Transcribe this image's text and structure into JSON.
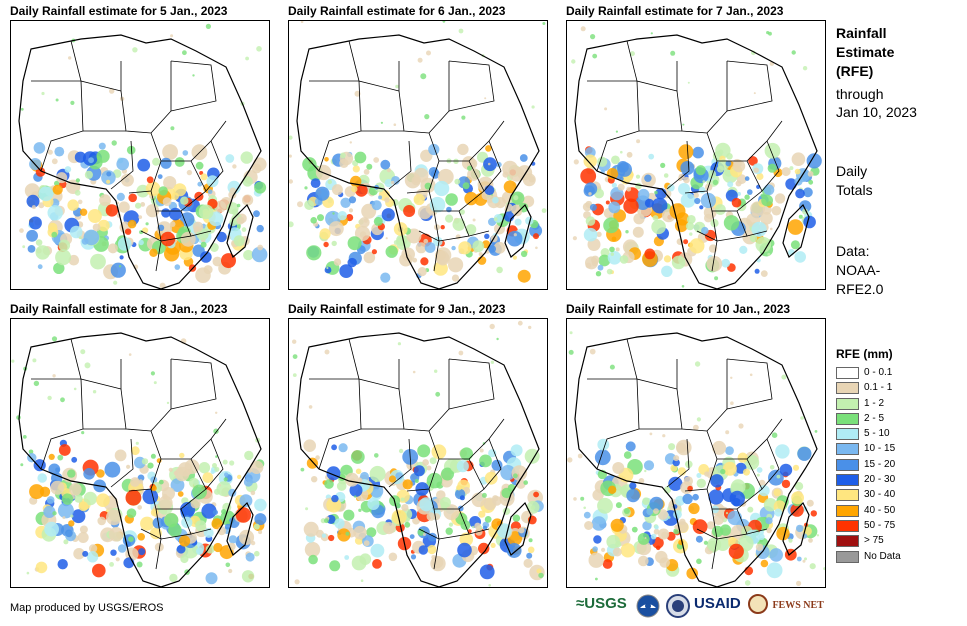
{
  "panels": [
    {
      "title": "Daily Rainfall estimate for 5 Jan., 2023",
      "seed": 5
    },
    {
      "title": "Daily Rainfall estimate for 6 Jan., 2023",
      "seed": 6
    },
    {
      "title": "Daily Rainfall estimate for 7 Jan., 2023",
      "seed": 7
    },
    {
      "title": "Daily Rainfall estimate for 8 Jan., 2023",
      "seed": 8
    },
    {
      "title": "Daily Rainfall estimate for 9 Jan., 2023",
      "seed": 9
    },
    {
      "title": "Daily Rainfall estimate for 10 Jan., 2023",
      "seed": 10
    }
  ],
  "sidebar": {
    "heading_line1": "Rainfall",
    "heading_line2": "Estimate",
    "heading_line3": "(RFE)",
    "through_line1": "through",
    "through_line2": "Jan 10, 2023",
    "daily_line1": "Daily",
    "daily_line2": "Totals",
    "data_line1": "Data:",
    "data_line2": "NOAA-",
    "data_line3": "RFE2.0"
  },
  "legend": {
    "title": "RFE (mm)",
    "items": [
      {
        "label": "0 - 0.1",
        "color": "#ffffff"
      },
      {
        "label": "0.1 - 1",
        "color": "#e8d5b5"
      },
      {
        "label": "1 - 2",
        "color": "#c3f0b0"
      },
      {
        "label": "2 - 5",
        "color": "#7ae07a"
      },
      {
        "label": "5 - 10",
        "color": "#b0ecf5"
      },
      {
        "label": "10 - 15",
        "color": "#7ab8f0"
      },
      {
        "label": "15 - 20",
        "color": "#4a90e8"
      },
      {
        "label": "20 - 30",
        "color": "#1e5ee8"
      },
      {
        "label": "30 - 40",
        "color": "#ffe680"
      },
      {
        "label": "40 - 50",
        "color": "#ffa500"
      },
      {
        "label": "50 - 75",
        "color": "#ff3300"
      },
      {
        "label": "> 75",
        "color": "#a01010"
      },
      {
        "label": "No Data",
        "color": "#999999"
      }
    ]
  },
  "footer": {
    "credit": "Map produced by USGS/EROS",
    "logo_usgs": "≈USGS",
    "logo_usaid": "USAID",
    "logo_fews": "FEWS NET"
  }
}
